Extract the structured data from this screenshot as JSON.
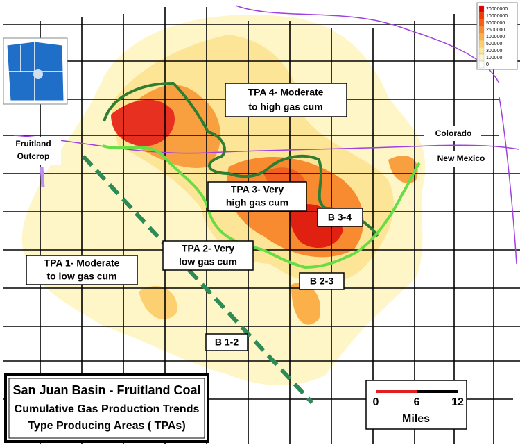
{
  "legend": {
    "values": [
      20000000,
      10000000,
      5000000,
      2500000,
      1000000,
      500000,
      300000,
      100000,
      0
    ]
  },
  "labels": {
    "tpa4": [
      "TPA 4- Moderate",
      "to high gas cum"
    ],
    "tpa3": [
      "TPA 3- Very",
      "high gas cum"
    ],
    "tpa2": [
      "TPA 2- Very",
      "low gas cum"
    ],
    "tpa1": [
      "TPA 1- Moderate",
      "to low gas cum"
    ],
    "b34": "B 3-4",
    "b23": "B 2-3",
    "b12": "B 1-2",
    "colorado": "Colorado",
    "new_mexico": "New Mexico",
    "outcrop": [
      "Fruitland",
      "Outcrop"
    ]
  },
  "title": {
    "lines": [
      "San Juan Basin - Fruitland Coal",
      "Cumulative Gas Production Trends",
      "Type Producing Areas ( TPAs)"
    ]
  },
  "scale": {
    "ticks": [
      0,
      6,
      12
    ],
    "unit": "Miles"
  }
}
